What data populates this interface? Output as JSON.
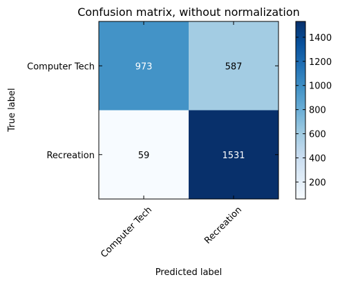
{
  "chart_data": {
    "type": "heatmap",
    "title": "Confusion matrix, without normalization",
    "xlabel": "Predicted label",
    "ylabel": "True label",
    "x_categories": [
      "Computer Tech",
      "Recreation"
    ],
    "y_categories": [
      "Computer Tech",
      "Recreation"
    ],
    "values": [
      [
        973,
        587
      ],
      [
        59,
        1531
      ]
    ],
    "vmin": 59,
    "vmax": 1531,
    "colormap": "Blues",
    "colormap_stops": [
      "#f7fbff",
      "#deebf7",
      "#c6dbef",
      "#9ecae1",
      "#6baed6",
      "#4292c6",
      "#2171b5",
      "#08519c",
      "#08306b"
    ],
    "annotation_threshold": 765.5,
    "annotation_colors": {
      "dark": "#ffffff",
      "light": "#000000"
    },
    "colorbar_ticks": [
      200,
      400,
      600,
      800,
      1000,
      1200,
      1400
    ],
    "xtick_rotation_deg": 45
  }
}
